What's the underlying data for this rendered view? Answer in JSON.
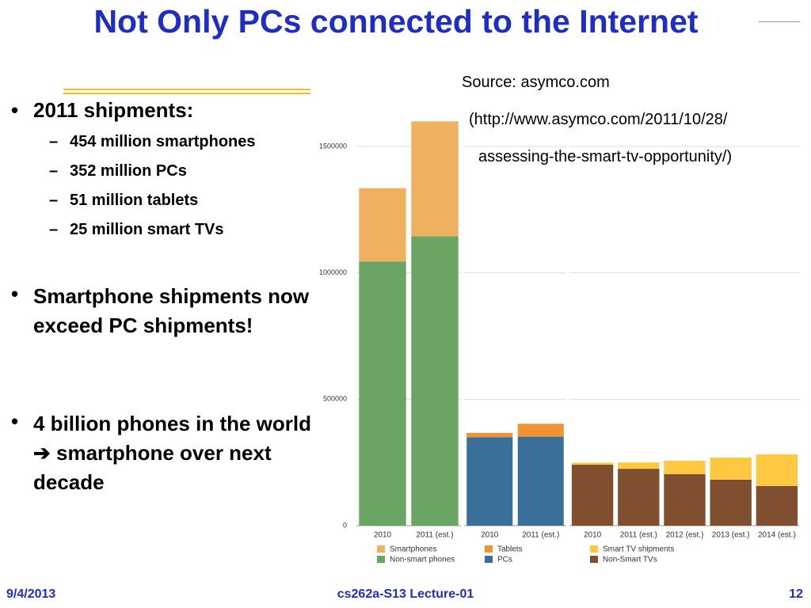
{
  "title": "Not Only PCs connected to the Internet",
  "bullets": [
    {
      "text": "2011 shipments:",
      "sub": [
        "454 million smartphones",
        "352 million PCs",
        "51 million tablets",
        "25 million smart TVs"
      ]
    },
    {
      "text": "Smartphone shipments now exceed PC shipments!"
    },
    {
      "text": "4 billion phones in the world ➔ smartphone over next decade"
    }
  ],
  "source": [
    "Source: asymco.com",
    "(http://www.asymco.com/2011/10/28/",
    "assessing-the-smart-tv-opportunity/)"
  ],
  "footer": {
    "date": "9/4/2013",
    "course": "cs262a-S13 Lecture-01",
    "page": "12"
  },
  "chart_data": [
    {
      "type": "bar",
      "stacked": true,
      "categories": [
        "2010",
        "2011 (est.)"
      ],
      "series": [
        {
          "name": "Non-smart phones",
          "color": "#6aa564",
          "values": [
            1045000,
            1145000
          ]
        },
        {
          "name": "Smartphones",
          "color": "#efb05f",
          "values": [
            290000,
            454000
          ]
        }
      ],
      "ylim": [
        0,
        1600000
      ],
      "yticks": [
        0,
        500000,
        1000000,
        1500000
      ],
      "grid": true
    },
    {
      "type": "bar",
      "stacked": true,
      "categories": [
        "2010",
        "2011 (est.)"
      ],
      "series": [
        {
          "name": "PCs",
          "color": "#3a6f9a",
          "values": [
            350000,
            352000
          ]
        },
        {
          "name": "Tablets",
          "color": "#f39234",
          "values": [
            17000,
            51000
          ]
        }
      ],
      "ylim": [
        0,
        1600000
      ],
      "yticks": [
        0,
        500000,
        1000000,
        1500000
      ],
      "grid": true
    },
    {
      "type": "bar",
      "stacked": true,
      "categories": [
        "2010",
        "2011 (est.)",
        "2012 (est.)",
        "2013 (est.)",
        "2014 (est.)"
      ],
      "series": [
        {
          "name": "Non-Smart TVs",
          "color": "#7f4f2f",
          "values": [
            241000,
            225000,
            204000,
            182000,
            157000
          ]
        },
        {
          "name": "Smart TV shipments",
          "color": "#fec841",
          "values": [
            8000,
            25000,
            53000,
            87000,
            125000
          ]
        }
      ],
      "ylim": [
        0,
        1600000
      ],
      "yticks": [
        0,
        500000,
        1000000,
        1500000
      ],
      "grid": true
    }
  ]
}
